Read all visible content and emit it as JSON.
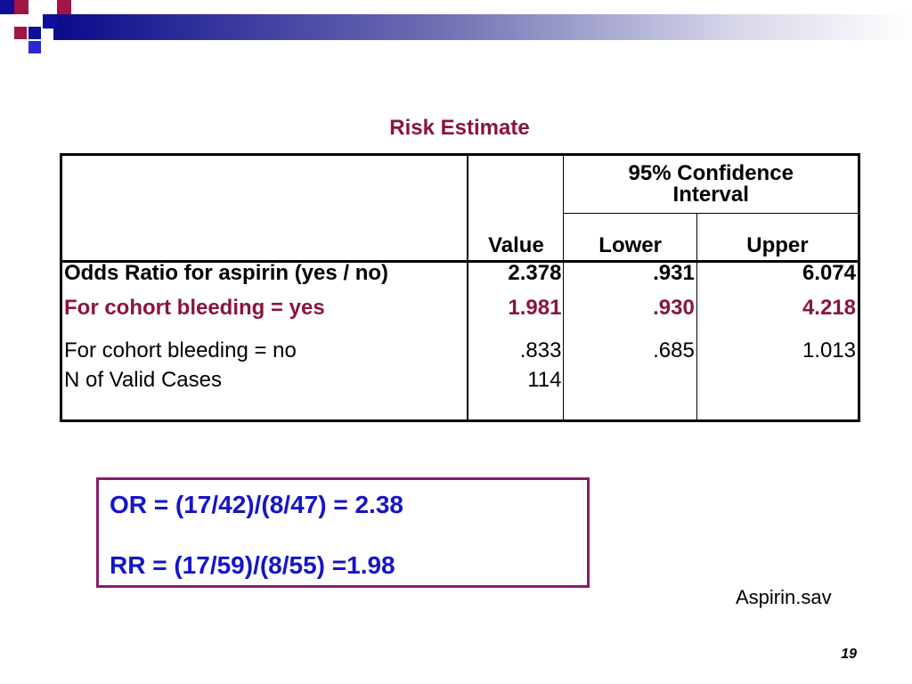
{
  "slide": {
    "title": "Risk Estimate",
    "file_name": "Aspirin.sav",
    "page_number": "19"
  },
  "table": {
    "headers": {
      "value": "Value",
      "ci": "95% Confidence Interval",
      "lower": "Lower",
      "upper": "Upper"
    },
    "rows": [
      {
        "label": "Odds Ratio for aspirin (yes / no)",
        "value": "2.378",
        "lower": ".931",
        "upper": "6.074"
      },
      {
        "label": "For cohort bleeding = yes",
        "value": "1.981",
        "lower": ".930",
        "upper": "4.218"
      },
      {
        "label": "For cohort bleeding = no",
        "value": ".833",
        "lower": ".685",
        "upper": "1.013"
      },
      {
        "label": "N of Valid Cases",
        "value": "114",
        "lower": "",
        "upper": ""
      }
    ]
  },
  "formulas": {
    "or": "OR = (17/42)/(8/47) = 2.38",
    "rr": "RR = (17/59)/(8/55) =1.98"
  },
  "colors": {
    "title": "#8a1538",
    "highlight_row": "#8a1538",
    "formula_text": "#1515c8",
    "formula_border": "#8a1a6e",
    "header_bar_start": "#0a0a8c"
  }
}
